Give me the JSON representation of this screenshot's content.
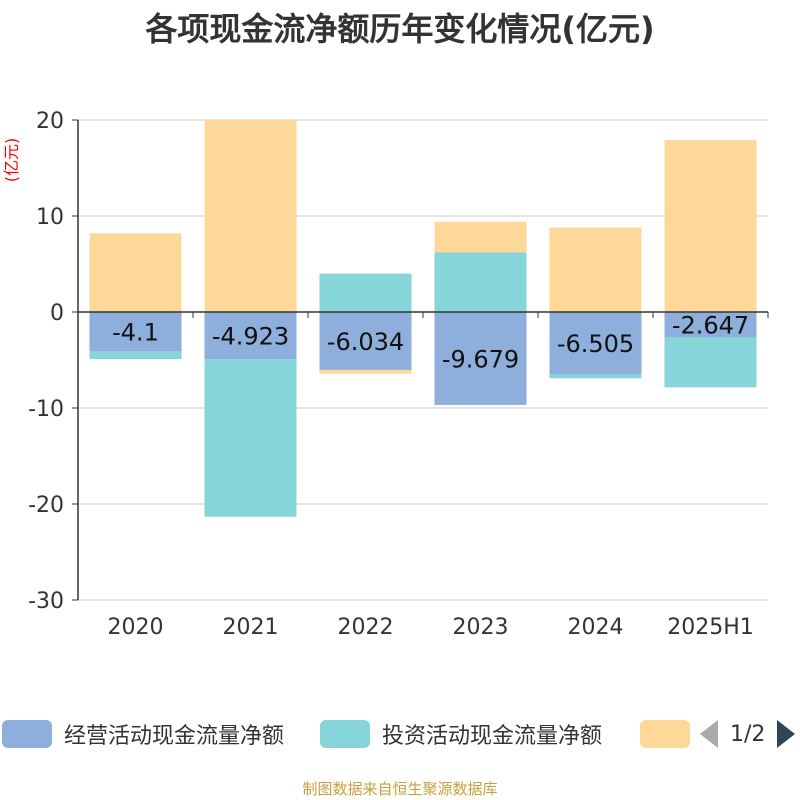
{
  "chart_data": {
    "type": "bar",
    "stacked": true,
    "title": "各项现金流净额历年变化情况(亿元)",
    "ylabel": "(亿元)",
    "categories": [
      "2020",
      "2021",
      "2022",
      "2023",
      "2024",
      "2025H1"
    ],
    "ylim": [
      -30,
      20
    ],
    "yticks": [
      20,
      10,
      0,
      -10,
      -20,
      -30
    ],
    "grid": true,
    "series": [
      {
        "name": "经营活动现金流量净额",
        "color": "#8eaedb",
        "values": [
          -4.1,
          -4.923,
          -6.034,
          -9.679,
          -6.505,
          -2.647
        ],
        "labels": [
          "-4.1",
          "-4.923",
          "-6.034",
          "-9.679",
          "-6.505",
          "-2.647"
        ]
      },
      {
        "name": "投资活动现金流量净额",
        "color": "#86d5d8",
        "values": [
          -0.8,
          -16.4,
          4.0,
          6.2,
          -0.4,
          -5.2
        ]
      },
      {
        "name": "",
        "color": "#fdd899",
        "values": [
          8.2,
          20.0,
          -0.4,
          3.2,
          8.8,
          17.9
        ]
      }
    ],
    "legend": {
      "position": "bottom",
      "page": "1/2"
    }
  },
  "source_note": "制图数据来自恒生聚源数据库"
}
